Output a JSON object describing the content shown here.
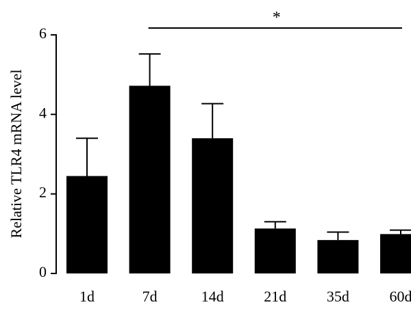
{
  "chart_data": {
    "type": "bar",
    "categories": [
      "1d",
      "7d",
      "14d",
      "21d",
      "35d",
      "60d"
    ],
    "values": [
      2.45,
      4.72,
      3.4,
      1.13,
      0.84,
      0.99
    ],
    "errors": [
      0.95,
      0.8,
      0.87,
      0.17,
      0.2,
      0.1
    ],
    "ylabel": "Relative TLR4 mRNA level",
    "xlabel": "",
    "ylim": [
      0,
      6
    ],
    "yticks": [
      0,
      2,
      4,
      6
    ],
    "bar_color": "#000000",
    "grid": false,
    "significance": {
      "label": "*",
      "from": "7d",
      "to": "60d"
    }
  }
}
